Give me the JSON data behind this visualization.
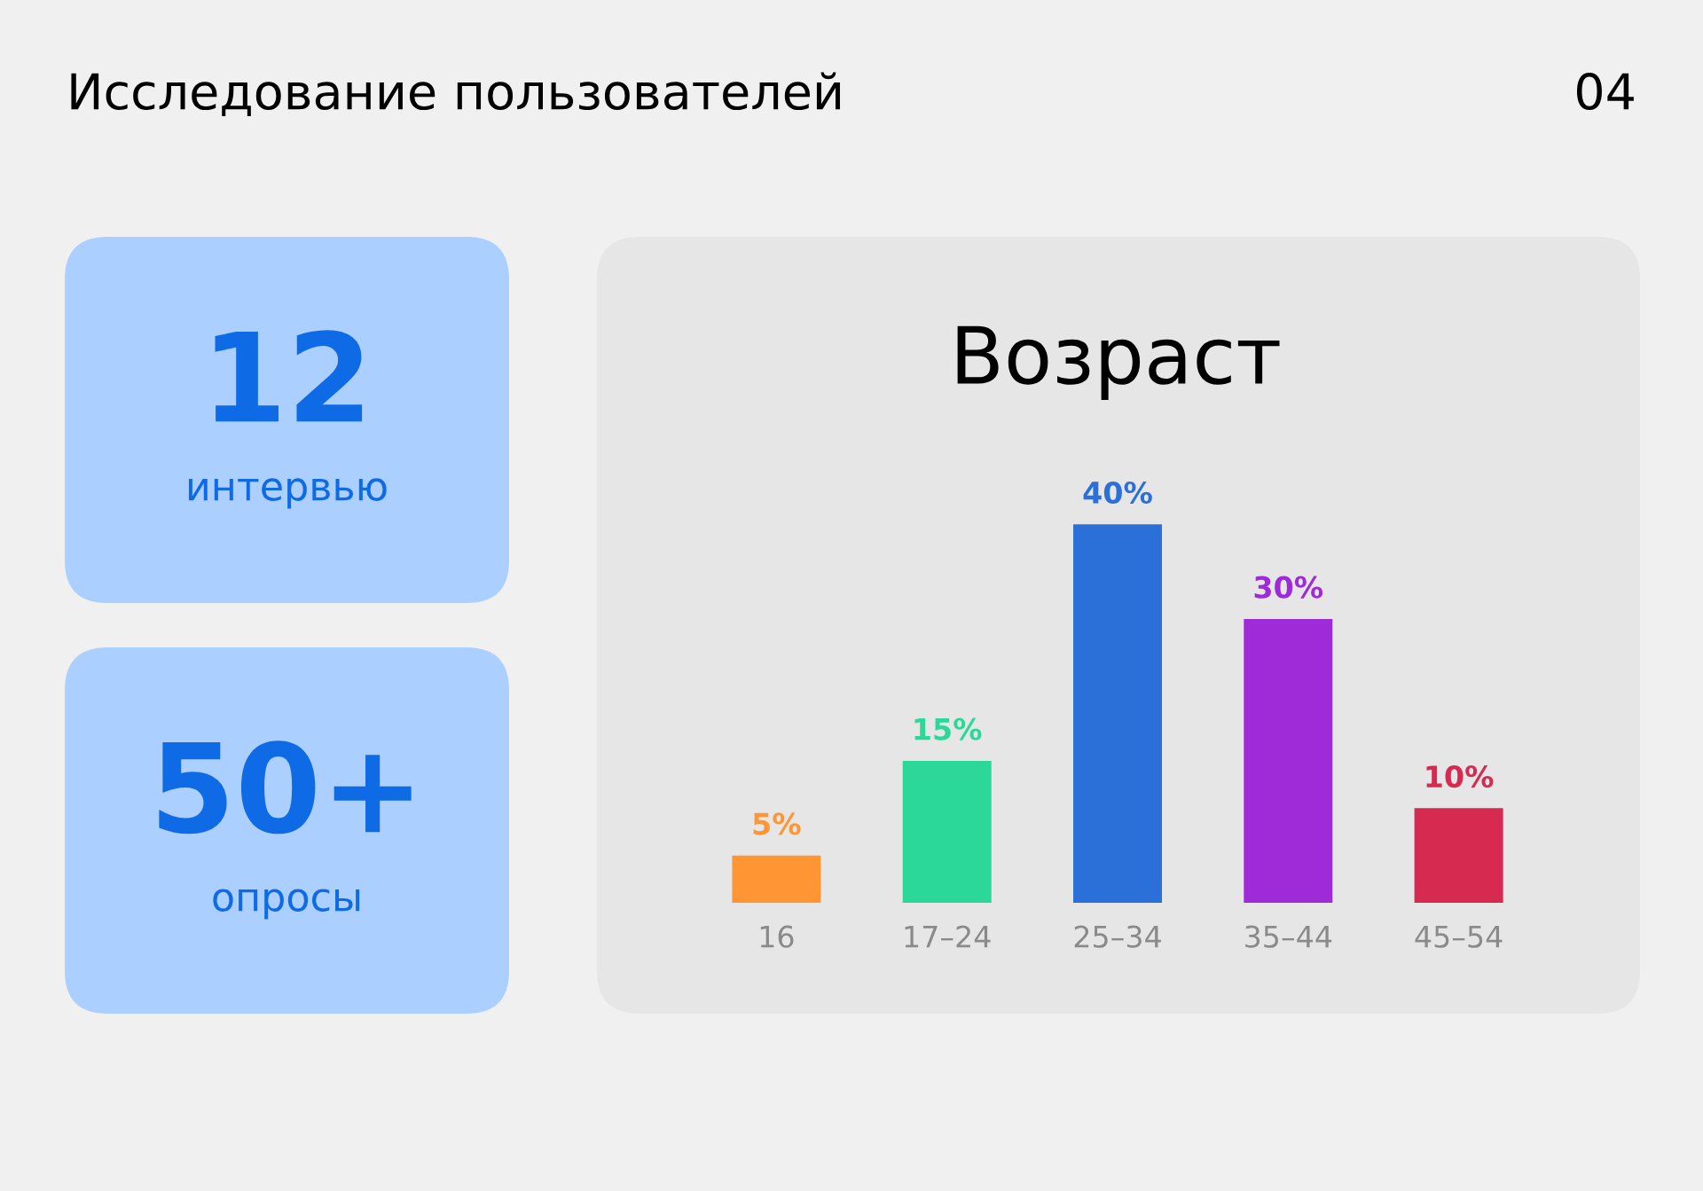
{
  "chart_data": [
    {
      "type": "other",
      "title": "Исследование пользователей",
      "annotations": [
        "04"
      ]
    },
    {
      "type": "other",
      "title": "12",
      "subtitle": "интервью",
      "color": "#0f6ae6"
    },
    {
      "type": "other",
      "title": "50+",
      "subtitle": "опросы",
      "color": "#0f6ae6"
    },
    {
      "type": "bar",
      "title": "Возраст",
      "categories": [
        "16",
        "17–24",
        "25–34",
        "35–44",
        "45–54"
      ],
      "values": [
        5,
        15,
        40,
        30,
        10
      ],
      "colors": [
        "#ff9533",
        "#2bd899",
        "#2b70d8",
        "#9e2ad8",
        "#d62a50"
      ],
      "value_labels": [
        "5%",
        "15%",
        "40%",
        "30%",
        "10%"
      ],
      "grid": false,
      "legend": false
    }
  ]
}
